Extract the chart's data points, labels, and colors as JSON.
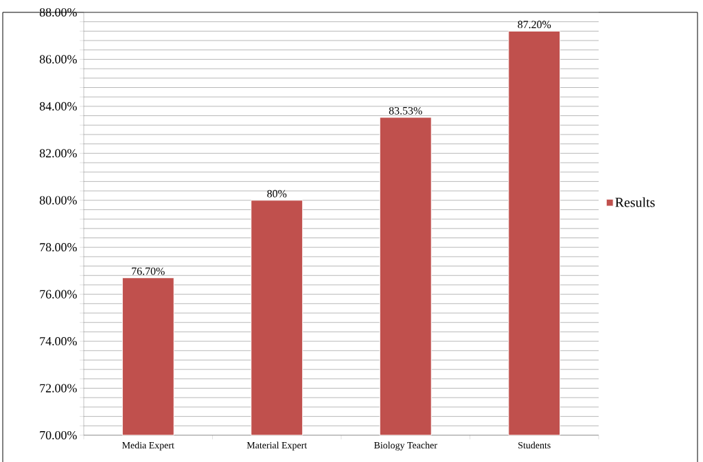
{
  "chart_data": {
    "type": "bar",
    "categories": [
      "Media Expert",
      "Material Expert",
      "Biology Teacher",
      "Students"
    ],
    "series": [
      {
        "name": "Results",
        "color": "#c0504d",
        "values": [
          76.7,
          80,
          83.53,
          87.2
        ],
        "value_labels": [
          "76.70%",
          "80%",
          "83.53%",
          "87.20%"
        ]
      }
    ],
    "ylim": [
      70,
      88
    ],
    "yticks": [
      {
        "value": 70,
        "label": "70.00%"
      },
      {
        "value": 72,
        "label": "72.00%"
      },
      {
        "value": 74,
        "label": "74.00%"
      },
      {
        "value": 76,
        "label": "76.00%"
      },
      {
        "value": 78,
        "label": "78.00%"
      },
      {
        "value": 80,
        "label": "80.00%"
      },
      {
        "value": 82,
        "label": "82.00%"
      },
      {
        "value": 84,
        "label": "84.00%"
      },
      {
        "value": 86,
        "label": "86.00%"
      },
      {
        "value": 88,
        "label": "88.00%"
      }
    ],
    "grid": "y",
    "legend": "right"
  }
}
